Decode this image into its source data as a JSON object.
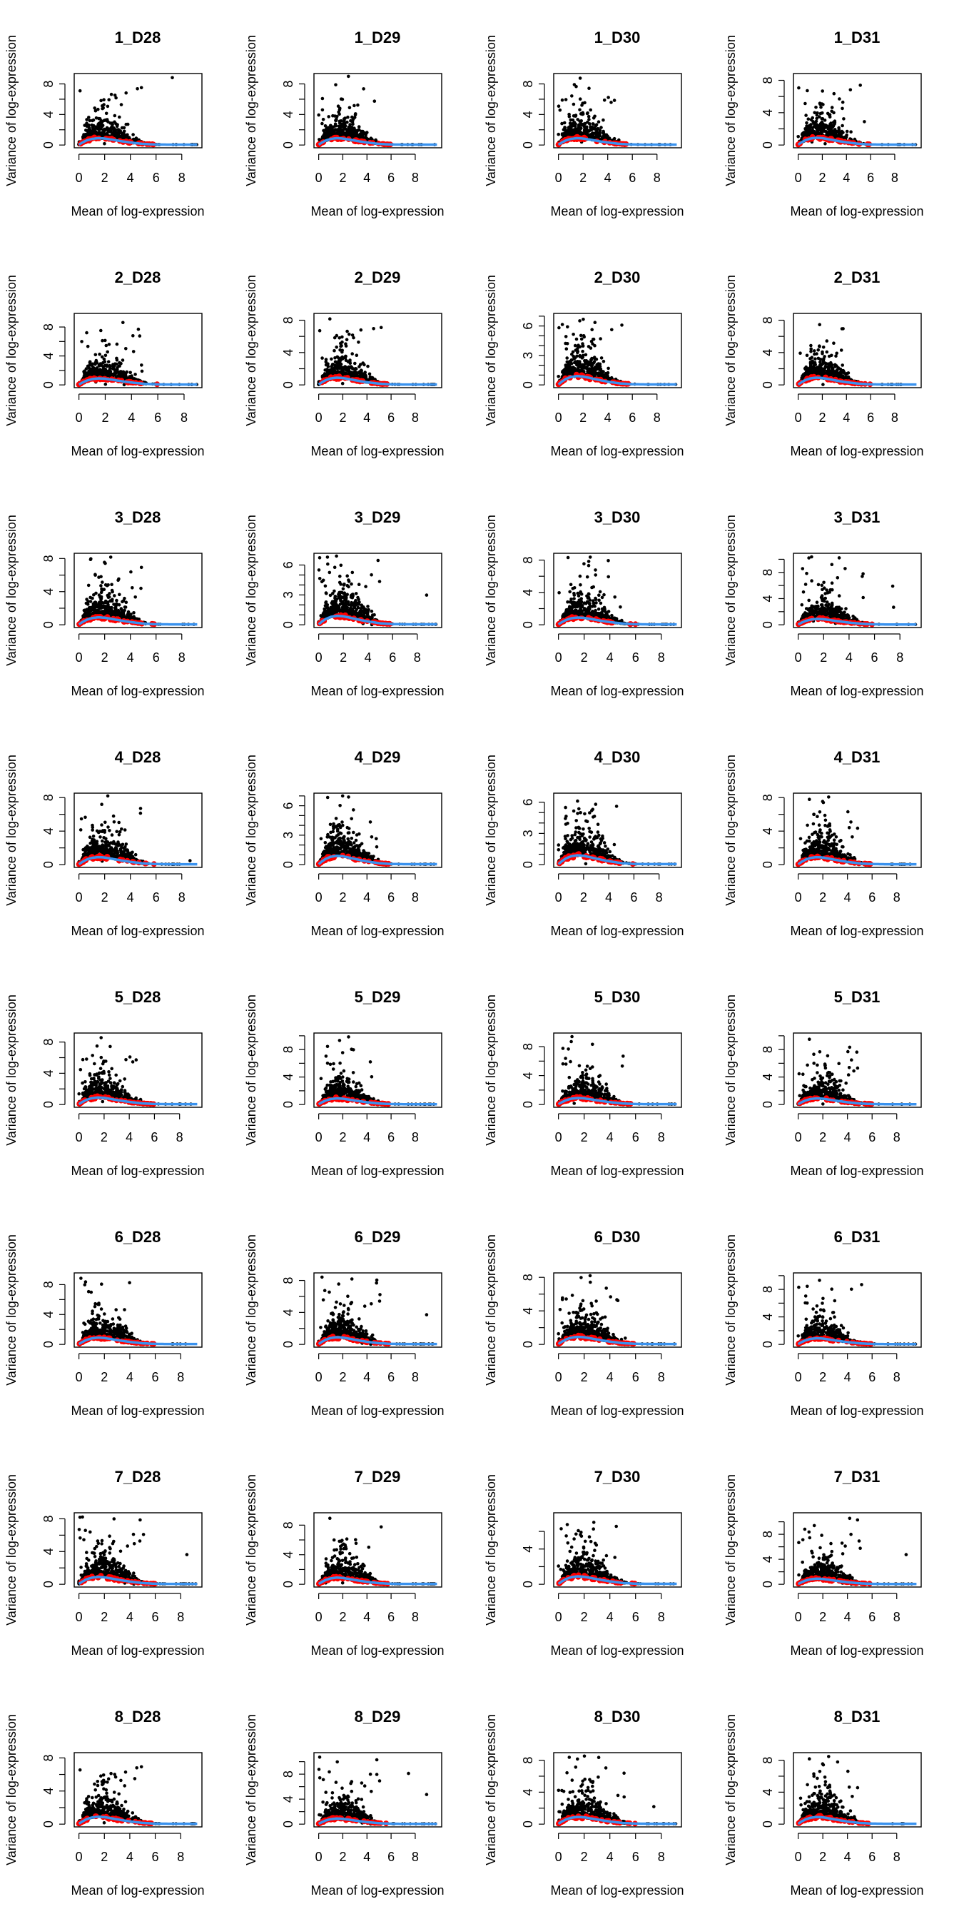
{
  "labels": {
    "xlabel": "Mean of log-expression",
    "ylabel": "Variance of log-expression"
  },
  "colors": {
    "points": "#000000",
    "spike_ins": "#ff0000",
    "trend": "#3a92ee"
  },
  "trend": {
    "x": [
      0,
      0.3,
      0.6,
      1.0,
      1.5,
      2.0,
      2.5,
      3.0,
      3.5,
      4.0,
      5.0,
      6.0,
      7.0,
      10.0
    ],
    "y": [
      0.05,
      0.35,
      0.6,
      0.8,
      0.9,
      0.85,
      0.72,
      0.58,
      0.45,
      0.33,
      0.15,
      0.07,
      0.05,
      0.05
    ]
  },
  "chart_data": [
    {
      "type": "scatter",
      "title": "1_D28",
      "xlim": [
        0,
        9.2
      ],
      "ylim": [
        0,
        9
      ],
      "ytick_step": 2,
      "ytick_labels": [
        "0",
        "4",
        "8"
      ],
      "xtick_labels": [
        "0",
        "2",
        "4",
        "6",
        "8"
      ]
    },
    {
      "type": "scatter",
      "title": "1_D29",
      "xlim": [
        0,
        9.8
      ],
      "ylim": [
        0,
        9
      ],
      "ytick_step": 2,
      "ytick_labels": [
        "0",
        "4",
        "8"
      ],
      "xtick_labels": [
        "0",
        "2",
        "4",
        "6",
        "8"
      ]
    },
    {
      "type": "scatter",
      "title": "1_D30",
      "xlim": [
        0,
        9.6
      ],
      "ylim": [
        0,
        9
      ],
      "ytick_step": 2,
      "ytick_labels": [
        "0",
        "4",
        "8"
      ],
      "xtick_labels": [
        "0",
        "2",
        "4",
        "6",
        "8"
      ]
    },
    {
      "type": "scatter",
      "title": "1_D31",
      "xlim": [
        0,
        9.8
      ],
      "ylim": [
        0,
        8.5
      ],
      "ytick_step": 2,
      "ytick_labels": [
        "0",
        "4",
        "8"
      ],
      "xtick_labels": [
        "0",
        "2",
        "4",
        "6",
        "8"
      ]
    },
    {
      "type": "scatter",
      "title": "2_D28",
      "xlim": [
        0,
        9.0
      ],
      "ylim": [
        0,
        9.5
      ],
      "ytick_step": 2,
      "ytick_labels": [
        "0",
        "4",
        "8"
      ],
      "xtick_labels": [
        "0",
        "2",
        "4",
        "6",
        "8"
      ]
    },
    {
      "type": "scatter",
      "title": "2_D29",
      "xlim": [
        0,
        9.8
      ],
      "ylim": [
        0,
        8.5
      ],
      "ytick_step": 2,
      "ytick_labels": [
        "0",
        "4",
        "8"
      ],
      "xtick_labels": [
        "0",
        "2",
        "4",
        "6",
        "8"
      ]
    },
    {
      "type": "scatter",
      "title": "2_D30",
      "xlim": [
        0,
        9.6
      ],
      "ylim": [
        0,
        7
      ],
      "ytick_step": 1,
      "ytick_labels": [
        "0",
        "3",
        "6"
      ],
      "xtick_labels": [
        "0",
        "2",
        "4",
        "6",
        "8"
      ]
    },
    {
      "type": "scatter",
      "title": "2_D31",
      "xlim": [
        0,
        9.8
      ],
      "ylim": [
        0,
        8.5
      ],
      "ytick_step": 2,
      "ytick_labels": [
        "0",
        "4",
        "8"
      ],
      "xtick_labels": [
        "0",
        "2",
        "4",
        "6",
        "8"
      ]
    },
    {
      "type": "scatter",
      "title": "3_D28",
      "xlim": [
        0,
        9.2
      ],
      "ylim": [
        0,
        8.3
      ],
      "ytick_step": 2,
      "ytick_labels": [
        "0",
        "4",
        "8"
      ],
      "xtick_labels": [
        "0",
        "2",
        "4",
        "6",
        "8"
      ]
    },
    {
      "type": "scatter",
      "title": "3_D29",
      "xlim": [
        0,
        9.6
      ],
      "ylim": [
        0,
        6.9
      ],
      "ytick_step": 1,
      "ytick_labels": [
        "0",
        "3",
        "6"
      ],
      "xtick_labels": [
        "0",
        "2",
        "4",
        "6",
        "8"
      ]
    },
    {
      "type": "scatter",
      "title": "3_D30",
      "xlim": [
        0,
        9.2
      ],
      "ylim": [
        0,
        8.5
      ],
      "ytick_step": 2,
      "ytick_labels": [
        "0",
        "4",
        "8"
      ],
      "xtick_labels": [
        "0",
        "2",
        "4",
        "6",
        "8"
      ]
    },
    {
      "type": "scatter",
      "title": "3_D31",
      "xlim": [
        0,
        9.3
      ],
      "ylim": [
        0,
        10.5
      ],
      "ytick_step": 2,
      "ytick_labels": [
        "0",
        "4",
        "8"
      ],
      "xtick_labels": [
        "0",
        "2",
        "4",
        "6",
        "8"
      ]
    },
    {
      "type": "scatter",
      "title": "4_D28",
      "xlim": [
        0,
        9.2
      ],
      "ylim": [
        0,
        8.2
      ],
      "ytick_step": 2,
      "ytick_labels": [
        "0",
        "4",
        "8"
      ],
      "xtick_labels": [
        "0",
        "2",
        "4",
        "6",
        "8"
      ]
    },
    {
      "type": "scatter",
      "title": "4_D29",
      "xlim": [
        0,
        9.8
      ],
      "ylim": [
        0,
        7
      ],
      "ytick_step": 1,
      "ytick_labels": [
        "0",
        "3",
        "6"
      ],
      "xtick_labels": [
        "0",
        "2",
        "4",
        "6",
        "8"
      ]
    },
    {
      "type": "scatter",
      "title": "4_D30",
      "xlim": [
        0,
        9.4
      ],
      "ylim": [
        0,
        6.6
      ],
      "ytick_step": 1,
      "ytick_labels": [
        "0",
        "3",
        "6"
      ],
      "xtick_labels": [
        "0",
        "2",
        "4",
        "6",
        "8"
      ]
    },
    {
      "type": "scatter",
      "title": "4_D31",
      "xlim": [
        0,
        9.6
      ],
      "ylim": [
        0,
        8.2
      ],
      "ytick_step": 2,
      "ytick_labels": [
        "0",
        "4",
        "8"
      ],
      "xtick_labels": [
        "0",
        "2",
        "4",
        "6",
        "8"
      ]
    },
    {
      "type": "scatter",
      "title": "5_D28",
      "xlim": [
        0,
        9.4
      ],
      "ylim": [
        0,
        8.8
      ],
      "ytick_step": 2,
      "ytick_labels": [
        "0",
        "4",
        "8"
      ],
      "xtick_labels": [
        "0",
        "2",
        "4",
        "6",
        "8"
      ]
    },
    {
      "type": "scatter",
      "title": "5_D29",
      "xlim": [
        0,
        9.8
      ],
      "ylim": [
        0,
        10
      ],
      "ytick_step": 2,
      "ytick_labels": [
        "0",
        "4",
        "8"
      ],
      "xtick_labels": [
        "0",
        "2",
        "4",
        "6",
        "8"
      ]
    },
    {
      "type": "scatter",
      "title": "5_D30",
      "xlim": [
        0,
        9.2
      ],
      "ylim": [
        0,
        9.5
      ],
      "ytick_step": 2,
      "ytick_labels": [
        "0",
        "4",
        "8"
      ],
      "xtick_labels": [
        "0",
        "2",
        "4",
        "6",
        "8"
      ]
    },
    {
      "type": "scatter",
      "title": "5_D31",
      "xlim": [
        0,
        9.6
      ],
      "ylim": [
        0,
        10
      ],
      "ytick_step": 2,
      "ytick_labels": [
        "0",
        "4",
        "8"
      ],
      "xtick_labels": [
        "0",
        "2",
        "4",
        "6",
        "8"
      ]
    },
    {
      "type": "scatter",
      "title": "6_D28",
      "xlim": [
        0,
        9.3
      ],
      "ylim": [
        0,
        9.2
      ],
      "ytick_step": 2,
      "ytick_labels": [
        "0",
        "4",
        "8"
      ],
      "xtick_labels": [
        "0",
        "2",
        "4",
        "6",
        "8"
      ]
    },
    {
      "type": "scatter",
      "title": "6_D29",
      "xlim": [
        0,
        9.8
      ],
      "ylim": [
        0,
        8.6
      ],
      "ytick_step": 2,
      "ytick_labels": [
        "0",
        "4",
        "8"
      ],
      "xtick_labels": [
        "0",
        "2",
        "4",
        "6",
        "8"
      ]
    },
    {
      "type": "scatter",
      "title": "6_D30",
      "xlim": [
        0,
        9.2
      ],
      "ylim": [
        0,
        8.2
      ],
      "ytick_step": 2,
      "ytick_labels": [
        "0",
        "4",
        "8"
      ],
      "xtick_labels": [
        "0",
        "2",
        "4",
        "6",
        "8"
      ]
    },
    {
      "type": "scatter",
      "title": "6_D31",
      "xlim": [
        0,
        9.6
      ],
      "ylim": [
        0,
        10
      ],
      "ytick_step": 2,
      "ytick_labels": [
        "0",
        "4",
        "8"
      ],
      "xtick_labels": [
        "0",
        "2",
        "4",
        "6",
        "8"
      ]
    },
    {
      "type": "scatter",
      "title": "7_D28",
      "xlim": [
        0,
        9.3
      ],
      "ylim": [
        0,
        8.4
      ],
      "ytick_step": 2,
      "ytick_labels": [
        "0",
        "4",
        "8"
      ],
      "xtick_labels": [
        "0",
        "2",
        "4",
        "6",
        "8"
      ]
    },
    {
      "type": "scatter",
      "title": "7_D29",
      "xlim": [
        0,
        9.8
      ],
      "ylim": [
        0,
        9.3
      ],
      "ytick_step": 2,
      "ytick_labels": [
        "0",
        "4",
        "8"
      ],
      "xtick_labels": [
        "0",
        "2",
        "4",
        "6",
        "8"
      ]
    },
    {
      "type": "scatter",
      "title": "7_D30",
      "xlim": [
        0,
        9.2
      ],
      "ylim": [
        0,
        7.8
      ],
      "ytick_step": 2,
      "ytick_labels": [
        "0",
        "4"
      ],
      "xtick_labels": [
        "0",
        "2",
        "4",
        "6",
        "8"
      ]
    },
    {
      "type": "scatter",
      "title": "7_D31",
      "xlim": [
        0,
        9.6
      ],
      "ylim": [
        0,
        11
      ],
      "ytick_step": 2,
      "ytick_labels": [
        "0",
        "4",
        "8"
      ],
      "xtick_labels": [
        "0",
        "2",
        "4",
        "6",
        "8"
      ]
    },
    {
      "type": "scatter",
      "title": "8_D28",
      "xlim": [
        0,
        9.3
      ],
      "ylim": [
        0,
        8.3
      ],
      "ytick_step": 2,
      "ytick_labels": [
        "0",
        "4",
        "8"
      ],
      "xtick_labels": [
        "0",
        "2",
        "4",
        "6",
        "8"
      ]
    },
    {
      "type": "scatter",
      "title": "8_D29",
      "xlim": [
        0,
        9.8
      ],
      "ylim": [
        0,
        11
      ],
      "ytick_step": 2,
      "ytick_labels": [
        "0",
        "4",
        "8"
      ],
      "xtick_labels": [
        "0",
        "2",
        "4",
        "6",
        "8"
      ]
    },
    {
      "type": "scatter",
      "title": "8_D30",
      "xlim": [
        0,
        9.2
      ],
      "ylim": [
        0,
        8.6
      ],
      "ytick_step": 2,
      "ytick_labels": [
        "0",
        "4",
        "8"
      ],
      "xtick_labels": [
        "0",
        "2",
        "4",
        "6",
        "8"
      ]
    },
    {
      "type": "scatter",
      "title": "8_D31",
      "xlim": [
        0,
        9.6
      ],
      "ylim": [
        0,
        8.6
      ],
      "ytick_step": 2,
      "ytick_labels": [
        "0",
        "4",
        "8"
      ],
      "xtick_labels": [
        "0",
        "2",
        "4",
        "6",
        "8"
      ]
    }
  ]
}
